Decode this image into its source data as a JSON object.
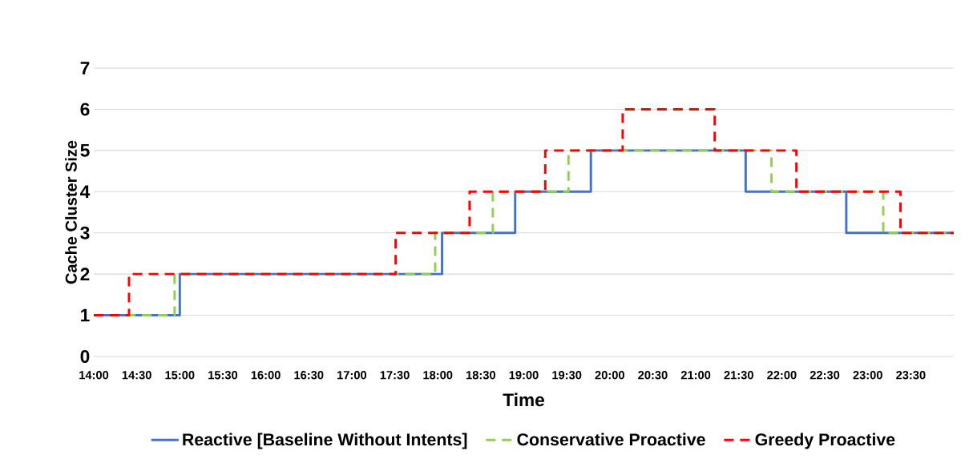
{
  "chart_data": {
    "type": "step",
    "xlabel": "Time",
    "ylabel": "Cache Cluster Size",
    "xlim": [
      14,
      24
    ],
    "ylim": [
      0,
      7
    ],
    "yticks": [
      0,
      1,
      2,
      3,
      4,
      5,
      6,
      7
    ],
    "xticks": [
      {
        "value": 14,
        "label": "14:00"
      },
      {
        "value": 14.5,
        "label": "14:30"
      },
      {
        "value": 15,
        "label": "15:00"
      },
      {
        "value": 15.5,
        "label": "15:30"
      },
      {
        "value": 16,
        "label": "16:00"
      },
      {
        "value": 16.5,
        "label": "16:30"
      },
      {
        "value": 17,
        "label": "17:00"
      },
      {
        "value": 17.5,
        "label": "17:30"
      },
      {
        "value": 18,
        "label": "18:00"
      },
      {
        "value": 18.5,
        "label": "18:30"
      },
      {
        "value": 19,
        "label": "19:00"
      },
      {
        "value": 19.5,
        "label": "19:30"
      },
      {
        "value": 20,
        "label": "20:00"
      },
      {
        "value": 20.5,
        "label": "20:30"
      },
      {
        "value": 21,
        "label": "21:00"
      },
      {
        "value": 21.5,
        "label": "21:30"
      },
      {
        "value": 22,
        "label": "22:00"
      },
      {
        "value": 22.5,
        "label": "22:30"
      },
      {
        "value": 23,
        "label": "23:00"
      },
      {
        "value": 23.5,
        "label": "23:30"
      }
    ],
    "grid": "y",
    "legend": "bottom",
    "series": [
      {
        "name": "Reactive [Baseline Without Intents]",
        "color": "#4472c4",
        "line_style": "solid",
        "x": [
          14,
          15.0,
          18.05,
          18.9,
          19.78,
          21.58,
          22.75,
          24
        ],
        "values": [
          1,
          2,
          3,
          4,
          5,
          4,
          3,
          3
        ]
      },
      {
        "name": "Conservative Proactive",
        "color": "#92d050",
        "line_style": "dashed",
        "x": [
          14,
          14.94,
          17.97,
          18.64,
          19.52,
          21.88,
          23.18,
          24
        ],
        "values": [
          1,
          2,
          3,
          4,
          5,
          4,
          3,
          3
        ]
      },
      {
        "name": "Greedy Proactive",
        "color": "#ff0000",
        "line_style": "dashed",
        "x": [
          14,
          14.41,
          17.51,
          18.37,
          19.25,
          20.15,
          21.22,
          22.17,
          23.38,
          24
        ],
        "values": [
          1,
          2,
          3,
          4,
          5,
          6,
          5,
          4,
          3,
          3
        ]
      }
    ]
  }
}
